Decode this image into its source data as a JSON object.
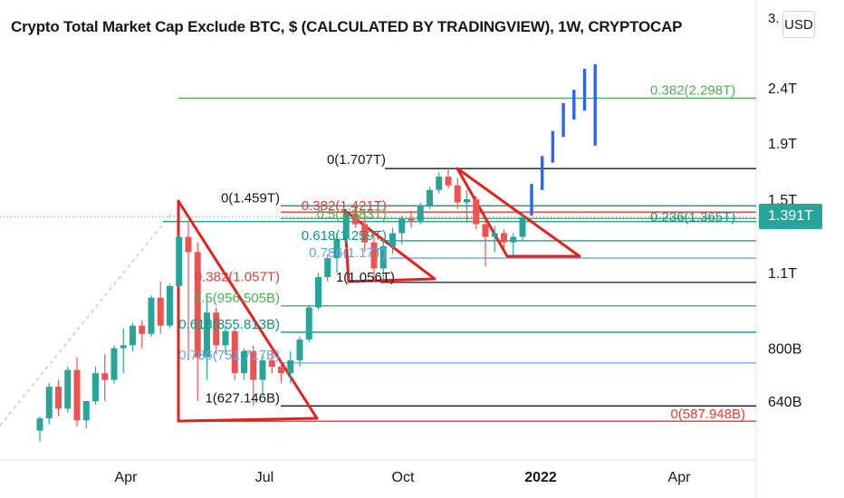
{
  "header": {
    "title": "Crypto Total Market Cap Exclude BTC, $ (CALCULATED BY TRADINGVIEW), 1W, CRYPTOCAP",
    "currency_label": "USD",
    "price_cut_label": "3."
  },
  "colors": {
    "up": "#26a69a",
    "down": "#ef5350",
    "projection": "#2962ff",
    "triangle": "#e8201c",
    "fib_green": "#4caf50",
    "fib_teal": "#089981",
    "fib_red": "#e53935",
    "fib_blue": "#64a4e8",
    "level_black": "#131722"
  },
  "chart_data": {
    "type": "candlestick",
    "title": "Crypto Total Market Cap Exclude BTC, $ (CALCULATED BY TRADINGVIEW), 1W, CRYPTOCAP",
    "timeframe": "1W",
    "y_scale": "log",
    "ylim": [
      560,
      3100
    ],
    "y_ticks": [
      {
        "value": 640,
        "label": "640B"
      },
      {
        "value": 800,
        "label": "800B"
      },
      {
        "value": 1100,
        "label": "1.1T"
      },
      {
        "value": 1500,
        "label": "1.5T"
      },
      {
        "value": 1900,
        "label": "1.9T"
      },
      {
        "value": 2400,
        "label": "2.4T"
      }
    ],
    "x_ticks": [
      "Apr",
      "Jul",
      "Oct",
      "2022",
      "Apr"
    ],
    "last_price_label": "1.391T",
    "candles": [
      {
        "o": 565,
        "h": 600,
        "l": 540,
        "c": 595
      },
      {
        "o": 595,
        "h": 690,
        "l": 580,
        "c": 680
      },
      {
        "o": 680,
        "h": 700,
        "l": 600,
        "c": 620
      },
      {
        "o": 620,
        "h": 740,
        "l": 610,
        "c": 730
      },
      {
        "o": 730,
        "h": 770,
        "l": 575,
        "c": 590
      },
      {
        "o": 590,
        "h": 640,
        "l": 570,
        "c": 640
      },
      {
        "o": 640,
        "h": 740,
        "l": 630,
        "c": 720
      },
      {
        "o": 720,
        "h": 780,
        "l": 640,
        "c": 700
      },
      {
        "o": 700,
        "h": 810,
        "l": 690,
        "c": 800
      },
      {
        "o": 800,
        "h": 870,
        "l": 720,
        "c": 810
      },
      {
        "o": 810,
        "h": 890,
        "l": 790,
        "c": 880
      },
      {
        "o": 880,
        "h": 900,
        "l": 800,
        "c": 850
      },
      {
        "o": 850,
        "h": 1000,
        "l": 840,
        "c": 990
      },
      {
        "o": 990,
        "h": 1060,
        "l": 850,
        "c": 880
      },
      {
        "o": 880,
        "h": 1050,
        "l": 870,
        "c": 1040
      },
      {
        "o": 1040,
        "h": 1290,
        "l": 1030,
        "c": 1280
      },
      {
        "o": 1280,
        "h": 1360,
        "l": 760,
        "c": 1200
      },
      {
        "o": 1200,
        "h": 1250,
        "l": 640,
        "c": 770
      },
      {
        "o": 770,
        "h": 1000,
        "l": 700,
        "c": 930
      },
      {
        "o": 930,
        "h": 950,
        "l": 780,
        "c": 810
      },
      {
        "o": 810,
        "h": 880,
        "l": 780,
        "c": 860
      },
      {
        "o": 860,
        "h": 870,
        "l": 700,
        "c": 720
      },
      {
        "o": 720,
        "h": 800,
        "l": 700,
        "c": 790
      },
      {
        "o": 790,
        "h": 810,
        "l": 627,
        "c": 700
      },
      {
        "o": 700,
        "h": 780,
        "l": 660,
        "c": 760
      },
      {
        "o": 760,
        "h": 800,
        "l": 720,
        "c": 740
      },
      {
        "o": 740,
        "h": 760,
        "l": 690,
        "c": 720
      },
      {
        "o": 720,
        "h": 790,
        "l": 690,
        "c": 760
      },
      {
        "o": 760,
        "h": 840,
        "l": 740,
        "c": 830
      },
      {
        "o": 830,
        "h": 960,
        "l": 820,
        "c": 950
      },
      {
        "o": 950,
        "h": 1100,
        "l": 940,
        "c": 1080
      },
      {
        "o": 1080,
        "h": 1190,
        "l": 1060,
        "c": 1170
      },
      {
        "o": 1170,
        "h": 1300,
        "l": 1100,
        "c": 1270
      },
      {
        "o": 1270,
        "h": 1430,
        "l": 1250,
        "c": 1410
      },
      {
        "o": 1410,
        "h": 1459,
        "l": 1330,
        "c": 1350
      },
      {
        "o": 1350,
        "h": 1420,
        "l": 1200,
        "c": 1250
      },
      {
        "o": 1250,
        "h": 1300,
        "l": 1056,
        "c": 1120
      },
      {
        "o": 1120,
        "h": 1270,
        "l": 1070,
        "c": 1230
      },
      {
        "o": 1230,
        "h": 1330,
        "l": 1190,
        "c": 1300
      },
      {
        "o": 1300,
        "h": 1400,
        "l": 1240,
        "c": 1380
      },
      {
        "o": 1380,
        "h": 1430,
        "l": 1330,
        "c": 1370
      },
      {
        "o": 1370,
        "h": 1480,
        "l": 1350,
        "c": 1460
      },
      {
        "o": 1460,
        "h": 1580,
        "l": 1440,
        "c": 1560
      },
      {
        "o": 1560,
        "h": 1680,
        "l": 1540,
        "c": 1650
      },
      {
        "o": 1650,
        "h": 1707,
        "l": 1570,
        "c": 1590
      },
      {
        "o": 1590,
        "h": 1640,
        "l": 1440,
        "c": 1480
      },
      {
        "o": 1480,
        "h": 1560,
        "l": 1360,
        "c": 1500
      },
      {
        "o": 1500,
        "h": 1520,
        "l": 1320,
        "c": 1350
      },
      {
        "o": 1350,
        "h": 1380,
        "l": 1130,
        "c": 1280
      },
      {
        "o": 1280,
        "h": 1340,
        "l": 1200,
        "c": 1300
      },
      {
        "o": 1300,
        "h": 1320,
        "l": 1220,
        "c": 1250
      },
      {
        "o": 1250,
        "h": 1300,
        "l": 1180,
        "c": 1280
      },
      {
        "o": 1280,
        "h": 1420,
        "l": 1260,
        "c": 1391
      }
    ],
    "projection_bars": [
      {
        "low": 1400,
        "high": 1600
      },
      {
        "low": 1560,
        "high": 1800
      },
      {
        "low": 1750,
        "high": 2000
      },
      {
        "low": 1950,
        "high": 2250
      },
      {
        "low": 2100,
        "high": 2380
      },
      {
        "low": 2180,
        "high": 2600
      },
      {
        "low": 1880,
        "high": 2650
      }
    ],
    "fib_levels": [
      {
        "label": "0.382(2.298T)",
        "value": 2298,
        "color": "#4caf50"
      },
      {
        "label": "0(1.707T)",
        "value": 1707,
        "color": "#131722"
      },
      {
        "label": "0(1.459T)",
        "value": 1459,
        "color": "#089981"
      },
      {
        "label": "0.382(1.421T)",
        "value": 1421,
        "color": "#e53935"
      },
      {
        "label": "0.236(1.365T)",
        "value": 1365,
        "color": "#089981"
      },
      {
        "label": "0.5(1.383T)",
        "value": 1383,
        "color": "#4caf50"
      },
      {
        "label": "0.618(1.259T)",
        "value": 1259,
        "color": "#089981"
      },
      {
        "label": "0.786(1.17T)",
        "value": 1170,
        "color": "#64a4e8"
      },
      {
        "label": "1(1.056T)",
        "value": 1056,
        "color": "#131722"
      },
      {
        "label": "0.382(1.057T)",
        "value": 1057,
        "color": "#e53935"
      },
      {
        "label": "0.5(956.505B)",
        "value": 956.505,
        "color": "#4caf50"
      },
      {
        "label": "0.618(855.813B)",
        "value": 855.813,
        "color": "#089981"
      },
      {
        "label": "0.786(751.717B)",
        "value": 751.717,
        "color": "#64a4e8"
      },
      {
        "label": "1(627.146B)",
        "value": 627.146,
        "color": "#131722"
      },
      {
        "label": "0(587.948B)",
        "value": 587.948,
        "color": "#e53935"
      }
    ]
  }
}
